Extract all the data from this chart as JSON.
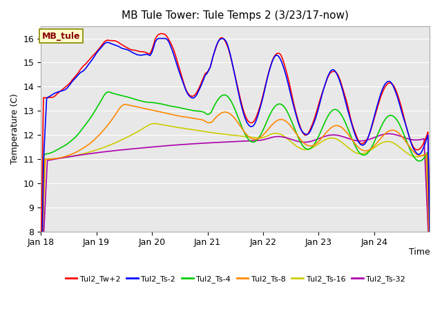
{
  "title": "MB Tule Tower: Tule Temps 2 (3/23/17-now)",
  "xlabel": "Time",
  "ylabel": "Temperature (C)",
  "ylim": [
    8.0,
    16.5
  ],
  "yticks": [
    8.0,
    9.0,
    10.0,
    11.0,
    12.0,
    13.0,
    14.0,
    15.0,
    16.0
  ],
  "plot_bg_color": "#e8e8e8",
  "series_colors": {
    "Tul2_Tw+2": "#ff0000",
    "Tul2_Ts-2": "#0000ff",
    "Tul2_Ts-4": "#00cc00",
    "Tul2_Ts-8": "#ff8800",
    "Tul2_Ts-16": "#cccc00",
    "Tul2_Ts-32": "#aa00aa"
  },
  "x_tick_labels": [
    "Jan 18",
    "Jan 19",
    "Jan 20",
    "Jan 21",
    "Jan 22",
    "Jan 23",
    "Jan 24"
  ],
  "x_tick_positions": [
    0,
    24,
    48,
    72,
    96,
    120,
    144
  ],
  "annotation_text": "MB_tule"
}
